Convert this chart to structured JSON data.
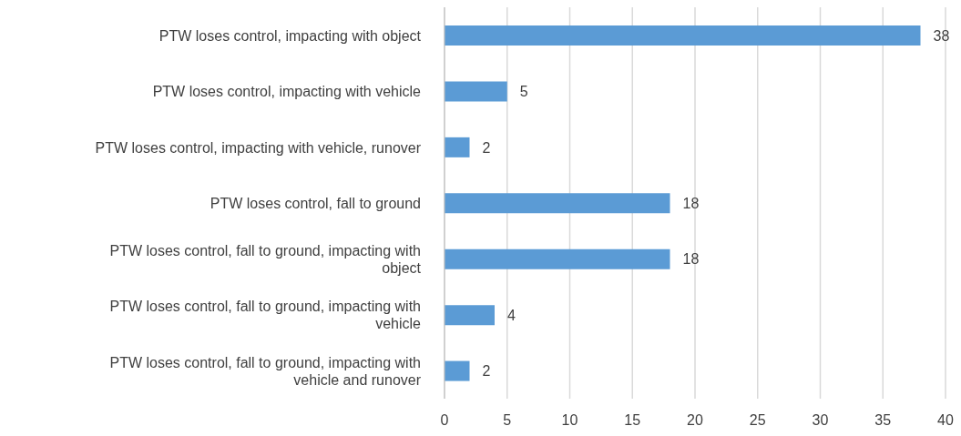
{
  "chart_data": {
    "type": "bar",
    "orientation": "horizontal",
    "categories": [
      "PTW loses control, impacting with object",
      "PTW loses control, impacting with vehicle",
      "PTW loses control, impacting with vehicle, runover",
      "PTW loses control, fall to ground",
      "PTW loses control, fall to ground, impacting with object",
      "PTW loses control, fall to ground, impacting with vehicle",
      "PTW loses control, fall to ground, impacting with vehicle and runover"
    ],
    "values": [
      38,
      5,
      2,
      18,
      18,
      4,
      2
    ],
    "color": "#5b9bd5",
    "xlim": [
      0,
      40
    ],
    "xticks": [
      0,
      5,
      10,
      15,
      20,
      25,
      30,
      35,
      40
    ],
    "grid": "x",
    "data_labels": true,
    "legend": false
  }
}
